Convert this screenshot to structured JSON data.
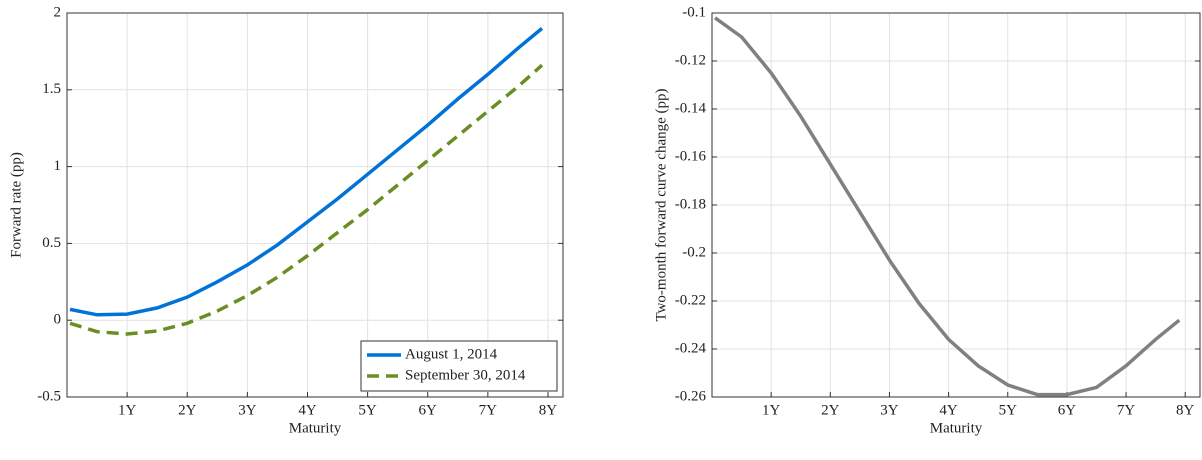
{
  "chart_data": [
    {
      "type": "line",
      "xlabel": "Maturity",
      "ylabel": "Forward rate (pp)",
      "x": [
        0.05,
        0.5,
        1,
        1.5,
        2,
        2.5,
        3,
        3.5,
        4,
        4.5,
        5,
        5.5,
        6,
        6.5,
        7,
        7.5,
        7.9
      ],
      "series": [
        {
          "name": "August 1, 2014",
          "color": "#0072d8",
          "dash": false,
          "values": [
            0.07,
            0.035,
            0.04,
            0.08,
            0.15,
            0.25,
            0.36,
            0.49,
            0.64,
            0.79,
            0.95,
            1.11,
            1.27,
            1.44,
            1.6,
            1.77,
            1.9
          ]
        },
        {
          "name": "September 30, 2014",
          "color": "#6b8e23",
          "dash": true,
          "values": [
            -0.02,
            -0.075,
            -0.09,
            -0.07,
            -0.02,
            0.06,
            0.16,
            0.28,
            0.42,
            0.57,
            0.72,
            0.88,
            1.04,
            1.2,
            1.36,
            1.52,
            1.66
          ]
        }
      ],
      "xlim": [
        0,
        8.25
      ],
      "xticks": [
        {
          "value": 1,
          "label": "1Y"
        },
        {
          "value": 2,
          "label": "2Y"
        },
        {
          "value": 3,
          "label": "3Y"
        },
        {
          "value": 4,
          "label": "4Y"
        },
        {
          "value": 5,
          "label": "5Y"
        },
        {
          "value": 6,
          "label": "6Y"
        },
        {
          "value": 7,
          "label": "7Y"
        },
        {
          "value": 8,
          "label": "8Y"
        }
      ],
      "ylim": [
        -0.5,
        2
      ],
      "yticks": [
        -0.5,
        0,
        0.5,
        1,
        1.5,
        2
      ],
      "grid": true,
      "legend": "lower right"
    },
    {
      "type": "line",
      "xlabel": "Maturity",
      "ylabel": "Two-month forward curve change (pp)",
      "x": [
        0.05,
        0.5,
        1,
        1.5,
        2,
        2.5,
        3,
        3.5,
        4,
        4.5,
        5,
        5.5,
        6,
        6.5,
        7,
        7.5,
        7.9
      ],
      "series": [
        {
          "color": "#808080",
          "dash": false,
          "values": [
            -0.102,
            -0.11,
            -0.125,
            -0.143,
            -0.163,
            -0.183,
            -0.203,
            -0.221,
            -0.236,
            -0.247,
            -0.255,
            -0.259,
            -0.259,
            -0.256,
            -0.247,
            -0.236,
            -0.228
          ]
        }
      ],
      "xlim": [
        0,
        8.25
      ],
      "xticks": [
        {
          "value": 1,
          "label": "1Y"
        },
        {
          "value": 2,
          "label": "2Y"
        },
        {
          "value": 3,
          "label": "3Y"
        },
        {
          "value": 4,
          "label": "4Y"
        },
        {
          "value": 5,
          "label": "5Y"
        },
        {
          "value": 6,
          "label": "6Y"
        },
        {
          "value": 7,
          "label": "7Y"
        },
        {
          "value": 8,
          "label": "8Y"
        }
      ],
      "ylim": [
        -0.26,
        -0.1
      ],
      "yticks": [
        -0.26,
        -0.24,
        -0.22,
        -0.2,
        -0.18,
        -0.16,
        -0.14,
        -0.12,
        -0.1
      ],
      "grid": true
    }
  ]
}
